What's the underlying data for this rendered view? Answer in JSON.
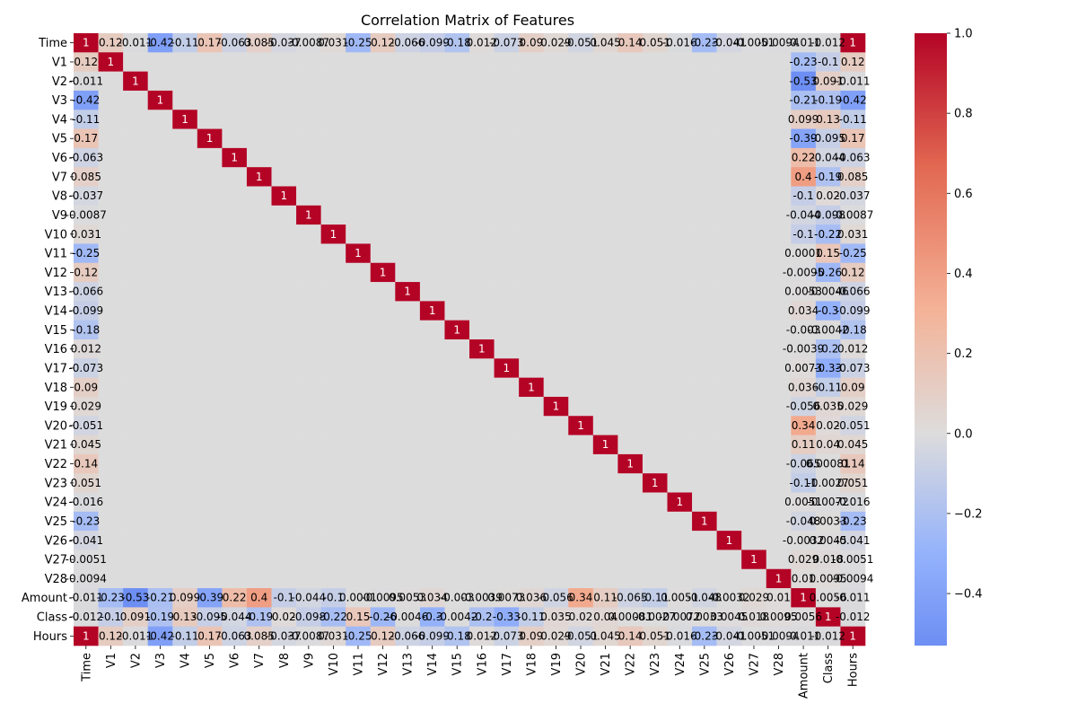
{
  "chart_data": {
    "type": "heatmap",
    "title": "Correlation Matrix of Features",
    "labels": [
      "Time",
      "V1",
      "V2",
      "V3",
      "V4",
      "V5",
      "V6",
      "V7",
      "V8",
      "V9",
      "V10",
      "V11",
      "V12",
      "V13",
      "V14",
      "V15",
      "V16",
      "V17",
      "V18",
      "V19",
      "V20",
      "V21",
      "V22",
      "V23",
      "V24",
      "V25",
      "V26",
      "V27",
      "V28",
      "Amount",
      "Class",
      "Hours"
    ],
    "colormap": "coolwarm",
    "vmin": -0.53,
    "vmax": 1.0,
    "colorbar_ticks": [
      "1.0",
      "0.8",
      "0.6",
      "0.4",
      "0.2",
      "0.0",
      "−0.2",
      "−0.4"
    ],
    "highlights": {
      "Time": {
        "V1": 0.12,
        "V2": -0.011,
        "V3": -0.42,
        "V4": -0.11,
        "V5": 0.17,
        "V6": -0.063,
        "V7": 0.085,
        "V8": -0.037,
        "V9": -0.0087,
        "V10": 0.031,
        "V11": -0.25,
        "V12": 0.12,
        "V13": -0.066,
        "V14": -0.099,
        "V15": -0.18,
        "V16": 0.012,
        "V17": -0.073,
        "V18": 0.09,
        "V19": 0.029,
        "V20": -0.051,
        "V21": 0.045,
        "V22": 0.14,
        "V23": 0.051,
        "V24": -0.016,
        "V25": -0.23,
        "V26": -0.041,
        "V27": -0.0051,
        "V28": -0.0094,
        "Amount": -0.011,
        "Class": -0.012,
        "Hours": 1.0
      },
      "Amount": {
        "V1": -0.23,
        "V2": -0.53,
        "V3": -0.21,
        "V4": 0.099,
        "V5": -0.39,
        "V6": 0.22,
        "V7": 0.4,
        "V8": -0.1,
        "V9": -0.044,
        "V10": -0.1,
        "V11": 0.0001,
        "V12": -0.0095,
        "V13": 0.0053,
        "V14": 0.034,
        "V15": -0.003,
        "V16": -0.0039,
        "V17": 0.0073,
        "V18": 0.036,
        "V19": -0.056,
        "V20": 0.34,
        "V21": 0.11,
        "V22": -0.065,
        "V23": -0.11,
        "V24": 0.0051,
        "V25": -0.048,
        "V26": -0.0032,
        "V27": 0.029,
        "V28": 0.01,
        "Class": 0.0056,
        "Hours": -0.011
      },
      "Class": {
        "V1": -0.1,
        "V2": 0.091,
        "V3": -0.19,
        "V4": 0.13,
        "V5": -0.095,
        "V6": -0.044,
        "V7": -0.19,
        "V8": 0.02,
        "V9": -0.098,
        "V10": -0.22,
        "V11": 0.15,
        "V12": -0.26,
        "V13": -0.0046,
        "V14": -0.3,
        "V15": -0.0042,
        "V16": -0.2,
        "V17": -0.33,
        "V18": -0.11,
        "V19": 0.035,
        "V20": 0.02,
        "V21": 0.04,
        "V22": 0.00081,
        "V23": -0.0027,
        "V24": -0.0072,
        "V25": 0.0033,
        "V26": 0.0045,
        "V27": 0.018,
        "V28": 0.0095,
        "Amount": 0.0056,
        "Hours": -0.012
      }
    }
  }
}
